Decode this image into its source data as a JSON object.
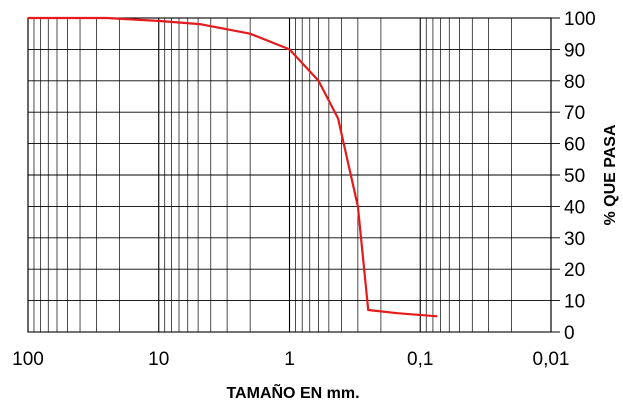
{
  "chart_data": {
    "type": "line",
    "title": "",
    "xlabel": "TAMAÑO EN mm.",
    "ylabel": "% QUE PASA",
    "x_scale": "log",
    "x_reversed": true,
    "xlim": [
      100,
      0.01
    ],
    "ylim": [
      0,
      100
    ],
    "grid": true,
    "x_tick_labels": [
      "100",
      "10",
      "1",
      "0,1",
      "0,01"
    ],
    "x_tick_values": [
      100,
      10,
      1,
      0.1,
      0.01
    ],
    "y_tick_labels": [
      "0",
      "10",
      "20",
      "30",
      "40",
      "50",
      "60",
      "70",
      "80",
      "90",
      "100"
    ],
    "y_tick_values": [
      0,
      10,
      20,
      30,
      40,
      50,
      60,
      70,
      80,
      90,
      100
    ],
    "series": [
      {
        "color": "#e41a1c",
        "x": [
          100,
          25,
          9.5,
          4.75,
          2,
          1,
          0.6,
          0.425,
          0.3,
          0.25,
          0.15,
          0.074
        ],
        "y": [
          100,
          100,
          99,
          98,
          95,
          90,
          80,
          68,
          40,
          7,
          6,
          5
        ]
      }
    ]
  },
  "colors": {
    "grid": "#000000",
    "line": "#e41a1c",
    "background": "#ffffff"
  }
}
